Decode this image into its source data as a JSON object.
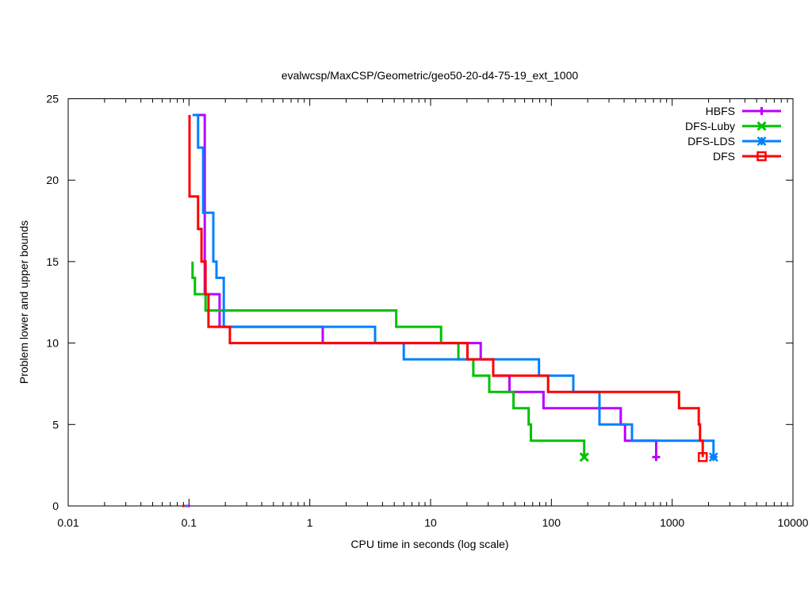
{
  "chart_data": {
    "type": "line",
    "title": "evalwcsp/MaxCSP/Geometric/geo50-20-d4-75-19_ext_1000",
    "xlabel": "CPU time in seconds (log scale)",
    "ylabel": "Problem lower and upper bounds",
    "xscale": "log",
    "xlim": [
      0.01,
      10000
    ],
    "ylim": [
      0,
      25
    ],
    "xticks": [
      0.01,
      0.1,
      1,
      10,
      100,
      1000,
      10000
    ],
    "xtick_labels": [
      "0.01",
      "0.1",
      "1",
      "10",
      "100",
      "1000",
      "10000"
    ],
    "yticks": [
      0,
      5,
      10,
      15,
      20,
      25
    ],
    "ytick_labels": [
      "0",
      "5",
      "10",
      "15",
      "20",
      "25"
    ],
    "grid": false,
    "legend_position": "top-right",
    "series": [
      {
        "name": "HBFS",
        "color": "#b800ff",
        "marker": "plus",
        "step_points": [
          [
            0.118,
            24
          ],
          [
            0.135,
            24
          ],
          [
            0.135,
            13
          ],
          [
            0.179,
            13
          ],
          [
            0.179,
            11
          ],
          [
            1.28,
            11
          ],
          [
            1.28,
            10
          ],
          [
            26,
            10
          ],
          [
            26,
            9
          ],
          [
            33,
            9
          ],
          [
            33,
            8
          ],
          [
            45,
            8
          ],
          [
            45,
            7
          ],
          [
            86,
            7
          ],
          [
            86,
            6
          ],
          [
            375,
            6
          ],
          [
            375,
            5
          ],
          [
            407,
            5
          ],
          [
            407,
            4
          ],
          [
            737,
            4
          ],
          [
            737,
            3
          ]
        ],
        "end_marker": [
          737,
          3
        ],
        "lower_bound_marker": [
          0.1,
          0
        ]
      },
      {
        "name": "DFS-Luby",
        "color": "#00c000",
        "marker": "x",
        "step_points": [
          [
            0.107,
            15
          ],
          [
            0.107,
            14
          ],
          [
            0.112,
            14
          ],
          [
            0.112,
            13
          ],
          [
            0.137,
            13
          ],
          [
            0.137,
            12
          ],
          [
            5.2,
            12
          ],
          [
            5.2,
            11
          ],
          [
            12.2,
            11
          ],
          [
            12.2,
            10
          ],
          [
            17.0,
            10
          ],
          [
            17.0,
            9
          ],
          [
            22.6,
            9
          ],
          [
            22.6,
            8
          ],
          [
            30.6,
            8
          ],
          [
            30.6,
            7
          ],
          [
            48.6,
            7
          ],
          [
            48.6,
            6
          ],
          [
            64.9,
            6
          ],
          [
            64.9,
            5
          ],
          [
            67.7,
            5
          ],
          [
            67.7,
            4
          ],
          [
            187,
            4
          ],
          [
            187,
            3
          ]
        ],
        "end_marker": [
          187,
          3
        ],
        "lower_bound_marker": [
          0.095,
          0
        ]
      },
      {
        "name": "DFS-LDS",
        "color": "#0080ff",
        "marker": "asterisk",
        "step_points": [
          [
            0.107,
            24
          ],
          [
            0.119,
            24
          ],
          [
            0.119,
            22
          ],
          [
            0.131,
            22
          ],
          [
            0.131,
            18
          ],
          [
            0.159,
            18
          ],
          [
            0.159,
            15
          ],
          [
            0.169,
            15
          ],
          [
            0.169,
            14
          ],
          [
            0.194,
            14
          ],
          [
            0.194,
            11
          ],
          [
            3.47,
            11
          ],
          [
            3.47,
            10
          ],
          [
            6.0,
            10
          ],
          [
            6.0,
            9
          ],
          [
            79,
            9
          ],
          [
            79,
            8
          ],
          [
            152,
            8
          ],
          [
            152,
            7
          ],
          [
            250,
            7
          ],
          [
            250,
            5
          ],
          [
            465,
            5
          ],
          [
            465,
            4
          ],
          [
            2200,
            4
          ],
          [
            2200,
            3
          ]
        ],
        "end_marker": [
          2200,
          3
        ],
        "lower_bound_marker": [
          0.095,
          0
        ]
      },
      {
        "name": "DFS",
        "color": "#ff0000",
        "marker": "square",
        "step_points": [
          [
            0.101,
            24
          ],
          [
            0.101,
            19
          ],
          [
            0.119,
            19
          ],
          [
            0.119,
            17
          ],
          [
            0.127,
            17
          ],
          [
            0.127,
            15
          ],
          [
            0.137,
            15
          ],
          [
            0.137,
            13
          ],
          [
            0.145,
            13
          ],
          [
            0.145,
            11
          ],
          [
            0.218,
            11
          ],
          [
            0.218,
            10
          ],
          [
            20.2,
            10
          ],
          [
            20.2,
            9
          ],
          [
            33,
            9
          ],
          [
            33,
            8
          ],
          [
            94,
            8
          ],
          [
            94,
            7
          ],
          [
            1140,
            7
          ],
          [
            1140,
            6
          ],
          [
            1660,
            6
          ],
          [
            1660,
            5
          ],
          [
            1700,
            5
          ],
          [
            1700,
            4
          ],
          [
            1790,
            4
          ],
          [
            1790,
            3
          ]
        ],
        "end_marker": [
          1790,
          3
        ],
        "lower_bound_marker": [
          0.09,
          0
        ]
      }
    ]
  }
}
